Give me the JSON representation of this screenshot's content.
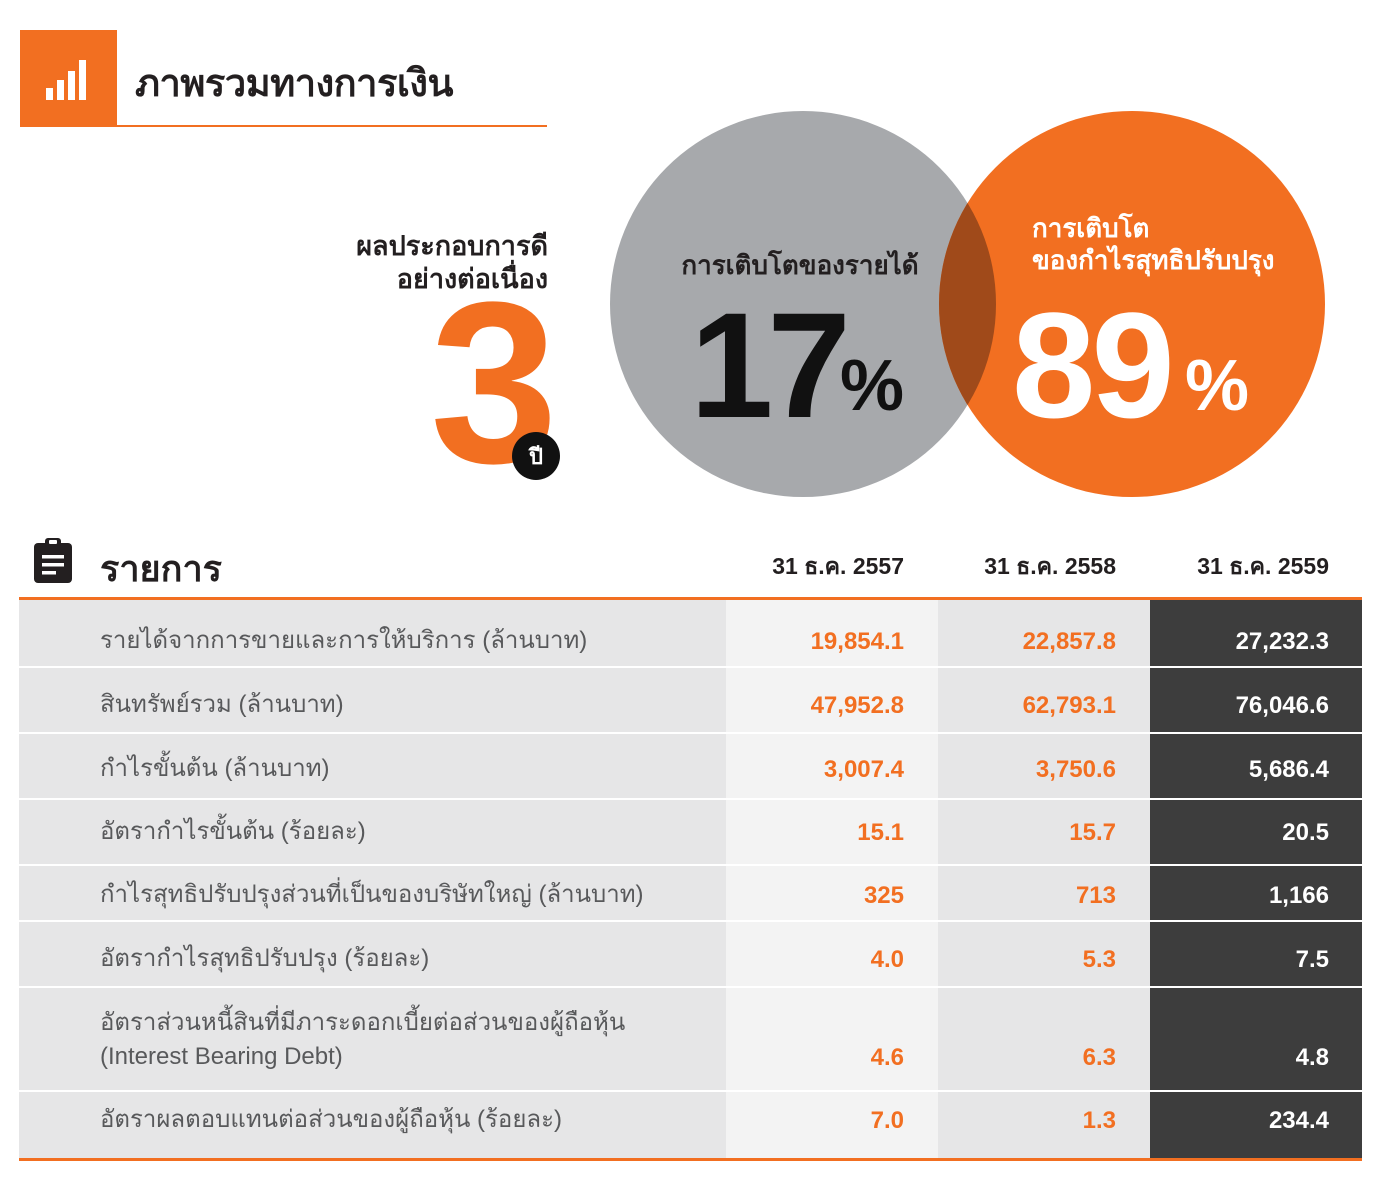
{
  "header": {
    "title": "ภาพรวมทางการเงิน"
  },
  "hero": {
    "perf_line1": "ผลประกอบการดี",
    "perf_line2": "อย่างต่อเนื่อง",
    "years_value": "3",
    "years_unit": "ปี",
    "revenue_growth_label": "การเติบโตของรายได้",
    "revenue_growth_value": "17",
    "revenue_growth_unit": "%",
    "profit_growth_line1": "การเติบโต",
    "profit_growth_line2": "ของกำไรสุทธิปรับปรุง",
    "profit_growth_value": "89",
    "profit_growth_unit": "%"
  },
  "colors": {
    "orange": "#f26f21",
    "gray_circle": "#a7a9ac",
    "overlap": "#a04a1a",
    "dark_col": "#3d3d3d"
  },
  "icons": {
    "header": "bar-chart-icon",
    "table": "clipboard-icon"
  },
  "table": {
    "title": "รายการ",
    "columns": [
      "31 ธ.ค. 2557",
      "31 ธ.ค. 2558",
      "31 ธ.ค. 2559"
    ],
    "rows": [
      {
        "label": "รายได้จากการขายและการให้บริการ (ล้านบาท)",
        "values": [
          "19,854.1",
          "22,857.8",
          "27,232.3"
        ]
      },
      {
        "label": "สินทรัพย์รวม (ล้านบาท)",
        "values": [
          "47,952.8",
          "62,793.1",
          "76,046.6"
        ]
      },
      {
        "label": "กำไรขั้นต้น (ล้านบาท)",
        "values": [
          "3,007.4",
          "3,750.6",
          "5,686.4"
        ]
      },
      {
        "label": "อัตรากำไรขั้นต้น (ร้อยละ)",
        "values": [
          "15.1",
          "15.7",
          "20.5"
        ]
      },
      {
        "label": "กำไรสุทธิปรับปรุงส่วนที่เป็นของบริษัทใหญ่ (ล้านบาท)",
        "values": [
          "325",
          "713",
          "1,166"
        ]
      },
      {
        "label": "อัตรากำไรสุทธิปรับปรุง (ร้อยละ)",
        "values": [
          "4.0",
          "5.3",
          "7.5"
        ]
      },
      {
        "label": "อัตราส่วนหนี้สินที่มีภาระดอกเบี้ยต่อส่วนของผู้ถือหุ้น",
        "label_line2": "(Interest Bearing Debt)",
        "values": [
          "4.6",
          "6.3",
          "4.8"
        ]
      },
      {
        "label": "อัตราผลตอบแทนต่อส่วนของผู้ถือหุ้น (ร้อยละ)",
        "values": [
          "7.0",
          "1.3",
          "234.4"
        ]
      }
    ]
  }
}
